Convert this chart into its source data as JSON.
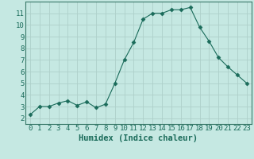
{
  "x": [
    0,
    1,
    2,
    3,
    4,
    5,
    6,
    7,
    8,
    9,
    10,
    11,
    12,
    13,
    14,
    15,
    16,
    17,
    18,
    19,
    20,
    21,
    22,
    23
  ],
  "y": [
    2.3,
    3.0,
    3.0,
    3.3,
    3.5,
    3.1,
    3.4,
    2.9,
    3.2,
    5.0,
    7.0,
    8.5,
    10.5,
    11.0,
    11.0,
    11.3,
    11.3,
    11.5,
    9.8,
    8.6,
    7.2,
    6.4,
    5.7,
    5.0
  ],
  "line_color": "#1a6b5a",
  "marker": "D",
  "marker_size": 2.5,
  "background_color": "#c5e8e2",
  "grid_color": "#aed0ca",
  "xlabel": "Humidex (Indice chaleur)",
  "xlim": [
    -0.5,
    23.5
  ],
  "ylim": [
    1.5,
    12.0
  ],
  "xticks": [
    0,
    1,
    2,
    3,
    4,
    5,
    6,
    7,
    8,
    9,
    10,
    11,
    12,
    13,
    14,
    15,
    16,
    17,
    18,
    19,
    20,
    21,
    22,
    23
  ],
  "yticks": [
    2,
    3,
    4,
    5,
    6,
    7,
    8,
    9,
    10,
    11
  ],
  "tick_labelsize": 6.5,
  "xlabel_fontsize": 7.5,
  "tick_color": "#1a6b5a",
  "spine_color": "#5a9a8a",
  "axis_color": "#3a7a6a"
}
